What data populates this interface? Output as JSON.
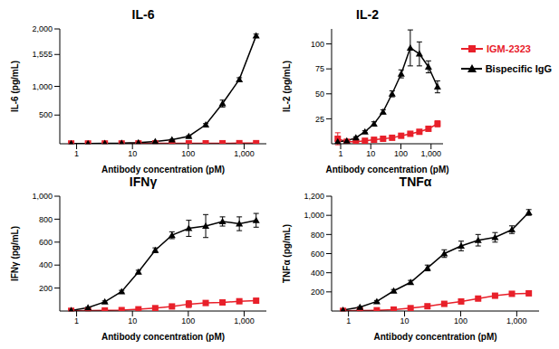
{
  "chart_data": [
    {
      "type": "line",
      "title": "IL-6",
      "x_label": "Antibody concentration (pM)",
      "y_label": "IL-6 (pg/mL)",
      "log": "x",
      "x": [
        0.8,
        1.6,
        3.2,
        6.4,
        12.8,
        25.6,
        51,
        102,
        205,
        410,
        820,
        1640
      ],
      "xlim": [
        0.5,
        2500
      ],
      "xticks": [
        1,
        10,
        100,
        {
          "value": 1000,
          "label": "1,000"
        }
      ],
      "ylim": [
        0,
        2000
      ],
      "yticks": [
        500,
        {
          "value": 1000,
          "label": "1,000"
        },
        {
          "value": 1555,
          "label": "1,555"
        },
        {
          "value": 2000,
          "label": "2,000"
        }
      ],
      "series": [
        {
          "name": "IGM-2323",
          "color": "#e8202a",
          "marker": "square",
          "values": [
            5,
            5,
            5,
            5,
            6,
            6,
            7,
            8,
            8,
            9,
            10,
            10
          ],
          "errors": [
            2,
            2,
            2,
            2,
            2,
            2,
            2,
            2,
            2,
            2,
            2,
            2
          ]
        },
        {
          "name": "Bispecific IgG",
          "color": "#000000",
          "marker": "triangle",
          "values": [
            5,
            5,
            8,
            10,
            20,
            40,
            70,
            130,
            330,
            700,
            1120,
            1880
          ],
          "errors": [
            2,
            2,
            2,
            3,
            4,
            6,
            8,
            12,
            20,
            60,
            30,
            30
          ]
        }
      ]
    },
    {
      "type": "line",
      "title": "IL-2",
      "x_label": "Antibody concentration (pM)",
      "y_label": "IL-2 (pg/mL)",
      "log": "x",
      "legend": "right",
      "x": [
        0.8,
        1.6,
        3.2,
        6.4,
        12.8,
        25.6,
        51,
        102,
        205,
        410,
        820,
        1640
      ],
      "xlim": [
        0.5,
        2500
      ],
      "xticks": [
        1,
        10,
        100,
        {
          "value": 1000,
          "label": "1,000"
        }
      ],
      "ylim": [
        0,
        115
      ],
      "yticks": [
        25,
        50,
        75,
        100
      ],
      "series": [
        {
          "name": "IGM-2323",
          "color": "#e8202a",
          "marker": "square",
          "values": [
            5,
            2,
            2,
            3,
            4,
            5,
            6,
            8,
            10,
            12,
            15,
            20
          ],
          "errors": [
            6,
            1,
            1,
            1,
            1,
            1,
            1,
            1,
            1,
            2,
            2,
            3
          ]
        },
        {
          "name": "Bispecific IgG",
          "color": "#000000",
          "marker": "triangle",
          "values": [
            2,
            3,
            6,
            12,
            20,
            32,
            50,
            70,
            96,
            90,
            77,
            57
          ],
          "errors": [
            1,
            1,
            1,
            1,
            2,
            2,
            3,
            4,
            18,
            12,
            6,
            6
          ]
        }
      ]
    },
    {
      "type": "line",
      "title": "IFNγ",
      "x_label": "Antibody concentration (pM)",
      "y_label": "IFNγ (pg/mL)",
      "log": "x",
      "x": [
        0.8,
        1.6,
        3.2,
        6.4,
        12.8,
        25.6,
        51,
        102,
        205,
        410,
        820,
        1640
      ],
      "xlim": [
        0.5,
        2500
      ],
      "xticks": [
        1,
        10,
        100,
        {
          "value": 1000,
          "label": "1,000"
        }
      ],
      "ylim": [
        0,
        1000
      ],
      "yticks": [
        200,
        400,
        600,
        800,
        {
          "value": 1000,
          "label": "1,000"
        }
      ],
      "series": [
        {
          "name": "IGM-2323",
          "color": "#e8202a",
          "marker": "square",
          "values": [
            2,
            3,
            5,
            8,
            15,
            25,
            40,
            60,
            70,
            75,
            85,
            90
          ],
          "errors": [
            1,
            1,
            1,
            2,
            3,
            4,
            6,
            30,
            10,
            8,
            8,
            8
          ]
        },
        {
          "name": "Bispecific IgG",
          "color": "#000000",
          "marker": "triangle",
          "values": [
            5,
            30,
            80,
            170,
            340,
            530,
            660,
            720,
            740,
            780,
            760,
            790
          ],
          "errors": [
            2,
            4,
            8,
            10,
            15,
            20,
            30,
            70,
            100,
            40,
            60,
            60
          ]
        }
      ]
    },
    {
      "type": "line",
      "title": "TNFα",
      "x_label": "Antibody concentration (pM)",
      "y_label": "TNFα (pg/mL)",
      "log": "x",
      "x": [
        0.8,
        1.6,
        3.2,
        6.4,
        12.8,
        25.6,
        51,
        102,
        205,
        410,
        820,
        1640
      ],
      "xlim": [
        0.5,
        2500
      ],
      "xticks": [
        1,
        10,
        100,
        {
          "value": 1000,
          "label": "1,000"
        }
      ],
      "ylim": [
        0,
        1200
      ],
      "yticks": [
        200,
        400,
        600,
        800,
        {
          "value": 1000,
          "label": "1,000"
        },
        {
          "value": 1200,
          "label": "1,200"
        }
      ],
      "series": [
        {
          "name": "IGM-2323",
          "color": "#e8202a",
          "marker": "square",
          "values": [
            2,
            4,
            8,
            15,
            30,
            50,
            75,
            100,
            130,
            160,
            180,
            185
          ],
          "errors": [
            1,
            1,
            2,
            3,
            4,
            5,
            6,
            8,
            10,
            10,
            12,
            12
          ]
        },
        {
          "name": "Bispecific IgG",
          "color": "#000000",
          "marker": "triangle",
          "values": [
            10,
            40,
            100,
            210,
            300,
            450,
            600,
            680,
            740,
            770,
            850,
            1030
          ],
          "errors": [
            3,
            5,
            10,
            15,
            20,
            30,
            40,
            50,
            60,
            50,
            40,
            30
          ]
        }
      ]
    }
  ]
}
